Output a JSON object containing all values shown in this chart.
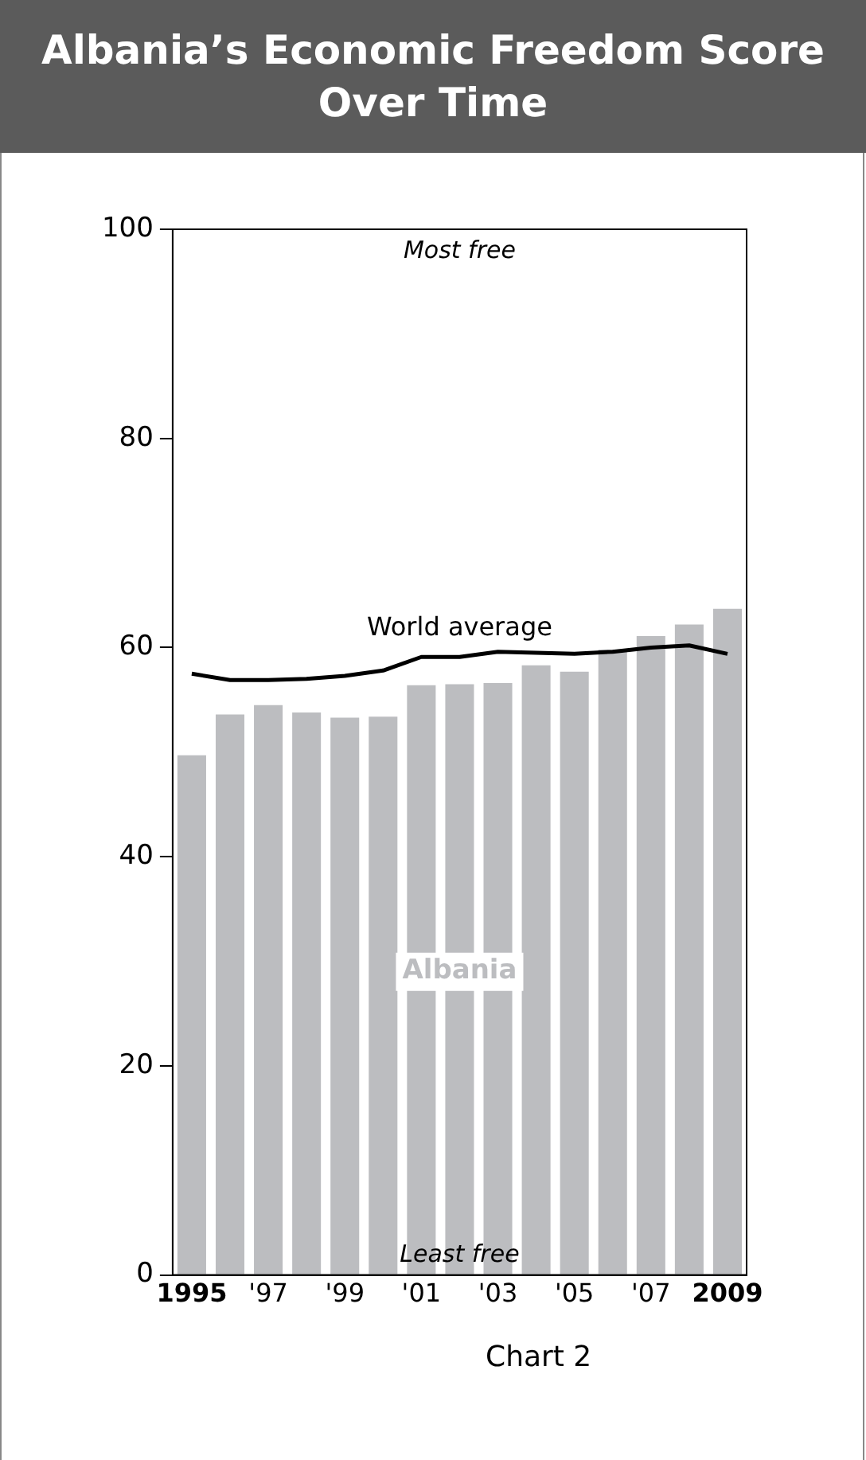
{
  "chart_data": {
    "type": "bar",
    "title": "Albania’s Economic Freedom Score Over Time",
    "categories": [
      "1995",
      null,
      "'97",
      null,
      "'99",
      null,
      "'01",
      null,
      "'03",
      null,
      "'05",
      null,
      "'07",
      null,
      "2009"
    ],
    "series": [
      {
        "name": "Albania",
        "color": "#bcbdc0",
        "values": [
          49.7,
          53.6,
          54.5,
          53.8,
          53.3,
          53.4,
          56.4,
          56.5,
          56.6,
          58.3,
          57.7,
          59.8,
          61.1,
          62.2,
          63.7
        ]
      },
      {
        "name": "World average",
        "type": "line",
        "color": "#000000",
        "values": [
          57.5,
          56.9,
          56.9,
          57.0,
          57.3,
          57.8,
          59.1,
          59.1,
          59.6,
          59.5,
          59.4,
          59.6,
          60.0,
          60.2,
          59.4
        ]
      }
    ],
    "ylim": [
      0,
      100
    ],
    "yticks": [
      0,
      20,
      40,
      60,
      80,
      100
    ],
    "grid": false,
    "legend": false,
    "marker": "none",
    "annotations": [
      "Most free",
      "Least free",
      "Chart 2"
    ]
  }
}
